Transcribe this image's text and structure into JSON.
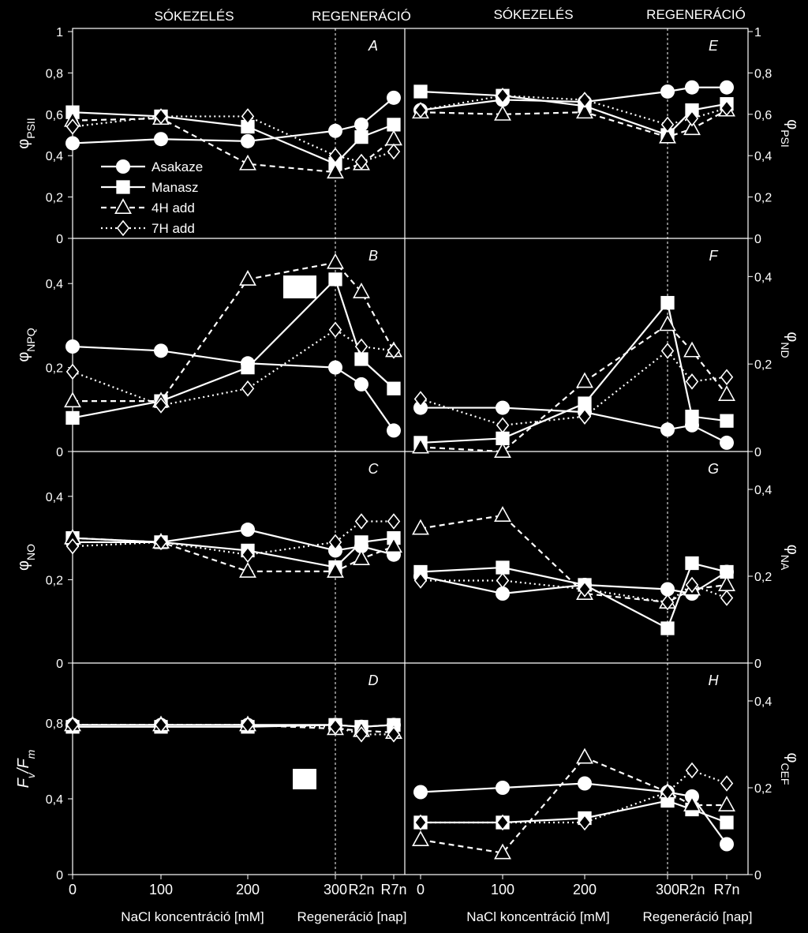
{
  "figure": {
    "header_left": "SÓKEZELÉS",
    "header_right": "REGENERÁCIÓ",
    "x_ticks": [
      "0",
      "100",
      "200",
      "300",
      "R2n",
      "R7n"
    ],
    "xlabel_nacl": "NaCl koncentráció [mM]",
    "xlabel_regen": "Regeneráció [nap]"
  },
  "legend": [
    {
      "name": "Asakaze",
      "style": "solid",
      "marker": "circle"
    },
    {
      "name": "Manasz",
      "style": "solid",
      "marker": "square"
    },
    {
      "name": "4H add",
      "style": "dashed",
      "marker": "triangle"
    },
    {
      "name": "7H add",
      "style": "dotted",
      "marker": "diamond"
    }
  ],
  "chart_data": [
    {
      "type": "line",
      "panel": "A",
      "ylabel": "φPSII",
      "ylabel_main": "φ",
      "ylabel_sub": "PSII",
      "ylim": [
        0,
        1
      ],
      "yticks": [
        "0",
        "0,2",
        "0,4",
        "0,6",
        "0,8",
        "1"
      ],
      "categories": [
        "0",
        "100",
        "200",
        "300",
        "R2n",
        "R7n"
      ],
      "series": [
        {
          "name": "Asakaze",
          "values": [
            0.46,
            0.48,
            0.47,
            0.52,
            0.55,
            0.68
          ]
        },
        {
          "name": "Manasz",
          "values": [
            0.61,
            0.59,
            0.54,
            0.36,
            0.49,
            0.55
          ]
        },
        {
          "name": "4H add",
          "values": [
            0.57,
            0.58,
            0.36,
            0.32,
            0.36,
            0.48
          ]
        },
        {
          "name": "7H add",
          "values": [
            0.54,
            0.59,
            0.59,
            0.4,
            0.37,
            0.42
          ]
        }
      ]
    },
    {
      "type": "line",
      "panel": "B",
      "ylabel": "φNPQ",
      "ylabel_main": "φ",
      "ylabel_sub": "NPQ",
      "ylim": [
        0,
        0.5
      ],
      "yticks": [
        "0",
        "0,2",
        "0,4"
      ],
      "categories": [
        "0",
        "100",
        "200",
        "300",
        "R2n",
        "R7n"
      ],
      "series": [
        {
          "name": "Asakaze",
          "values": [
            0.25,
            0.24,
            0.21,
            0.2,
            0.16,
            0.05
          ]
        },
        {
          "name": "Manasz",
          "values": [
            0.08,
            0.12,
            0.2,
            0.41,
            0.22,
            0.15
          ]
        },
        {
          "name": "4H add",
          "values": [
            0.12,
            0.12,
            0.41,
            0.45,
            0.38,
            0.24
          ]
        },
        {
          "name": "7H add",
          "values": [
            0.19,
            0.11,
            0.15,
            0.29,
            0.25,
            0.24
          ]
        }
      ]
    },
    {
      "type": "line",
      "panel": "C",
      "ylabel": "φNO",
      "ylabel_main": "φ",
      "ylabel_sub": "NO",
      "ylim": [
        0,
        0.5
      ],
      "yticks": [
        "0",
        "0,2",
        "0,4"
      ],
      "categories": [
        "0",
        "100",
        "200",
        "300",
        "R2n",
        "R7n"
      ],
      "series": [
        {
          "name": "Asakaze",
          "values": [
            0.29,
            0.29,
            0.32,
            0.27,
            0.28,
            0.26
          ]
        },
        {
          "name": "Manasz",
          "values": [
            0.3,
            0.29,
            0.27,
            0.23,
            0.29,
            0.3
          ]
        },
        {
          "name": "4H add",
          "values": [
            0.3,
            0.29,
            0.22,
            0.22,
            0.25,
            0.28
          ]
        },
        {
          "name": "7H add",
          "values": [
            0.28,
            0.29,
            0.26,
            0.29,
            0.34,
            0.34
          ]
        }
      ]
    },
    {
      "type": "line",
      "panel": "D",
      "ylabel": "Fv/Fm",
      "ylabel_main": "F",
      "ylabel_sub": "v",
      "ylabel_tail": "/F",
      "ylabel_sub2": "m",
      "ylim": [
        0,
        1.1
      ],
      "yticks": [
        "0",
        "0,4",
        "0,8"
      ],
      "ytick_values": [
        0,
        0.4,
        0.8
      ],
      "categories": [
        "0",
        "100",
        "200",
        "300",
        "R2n",
        "R7n"
      ],
      "series": [
        {
          "name": "Asakaze",
          "values": [
            0.79,
            0.79,
            0.79,
            0.79,
            0.78,
            0.79
          ]
        },
        {
          "name": "Manasz",
          "values": [
            0.78,
            0.78,
            0.78,
            0.79,
            0.78,
            0.79
          ]
        },
        {
          "name": "4H add",
          "values": [
            0.79,
            0.79,
            0.79,
            0.77,
            0.76,
            0.75
          ]
        },
        {
          "name": "7H add",
          "values": [
            0.79,
            0.79,
            0.79,
            0.78,
            0.74,
            0.74
          ]
        }
      ]
    },
    {
      "type": "line",
      "panel": "E",
      "ylabel": "φPSI",
      "ylabel_main": "φ",
      "ylabel_sub": "PSI",
      "ylim": [
        0,
        1
      ],
      "yticks": [
        "0",
        "0,2",
        "0,4",
        "0,6",
        "0,8",
        "1"
      ],
      "categories": [
        "0",
        "100",
        "200",
        "300",
        "R2n",
        "R7n"
      ],
      "series": [
        {
          "name": "Asakaze",
          "values": [
            0.62,
            0.67,
            0.66,
            0.71,
            0.73,
            0.73
          ]
        },
        {
          "name": "Manasz",
          "values": [
            0.71,
            0.69,
            0.64,
            0.5,
            0.62,
            0.65
          ]
        },
        {
          "name": "4H add",
          "values": [
            0.61,
            0.6,
            0.61,
            0.49,
            0.53,
            0.62
          ]
        },
        {
          "name": "7H add",
          "values": [
            0.62,
            0.69,
            0.67,
            0.55,
            0.58,
            0.63
          ]
        }
      ]
    },
    {
      "type": "line",
      "panel": "F",
      "ylabel": "φND",
      "ylabel_main": "φ",
      "ylabel_sub": "ND",
      "ylim": [
        0,
        0.48
      ],
      "yticks": [
        "0",
        "0,2",
        "0,4"
      ],
      "categories": [
        "0",
        "100",
        "200",
        "300",
        "R2n",
        "R7n"
      ],
      "series": [
        {
          "name": "Asakaze",
          "values": [
            0.1,
            0.1,
            0.09,
            0.05,
            0.06,
            0.02
          ]
        },
        {
          "name": "Manasz",
          "values": [
            0.02,
            0.03,
            0.11,
            0.34,
            0.08,
            0.07
          ]
        },
        {
          "name": "4H add",
          "values": [
            0.01,
            0.0,
            0.16,
            0.29,
            0.23,
            0.13
          ]
        },
        {
          "name": "7H add",
          "values": [
            0.12,
            0.06,
            0.08,
            0.23,
            0.16,
            0.17
          ]
        }
      ]
    },
    {
      "type": "line",
      "panel": "G",
      "ylabel": "φNA",
      "ylabel_main": "φ",
      "ylabel_sub": "NA",
      "ylim": [
        0,
        0.48
      ],
      "yticks": [
        "0",
        "0,2",
        "0,4"
      ],
      "categories": [
        "0",
        "100",
        "200",
        "300",
        "R2n",
        "R7n"
      ],
      "series": [
        {
          "name": "Asakaze",
          "values": [
            0.2,
            0.16,
            0.18,
            0.17,
            0.16,
            0.21
          ]
        },
        {
          "name": "Manasz",
          "values": [
            0.21,
            0.22,
            0.18,
            0.08,
            0.23,
            0.21
          ]
        },
        {
          "name": "4H add",
          "values": [
            0.31,
            0.34,
            0.16,
            0.14,
            0.17,
            0.18
          ]
        },
        {
          "name": "7H add",
          "values": [
            0.19,
            0.19,
            0.17,
            0.14,
            0.18,
            0.15
          ]
        }
      ]
    },
    {
      "type": "line",
      "panel": "H",
      "ylabel": "φCEF",
      "ylabel_main": "φ",
      "ylabel_sub": "CEF",
      "ylim": [
        0,
        0.48
      ],
      "yticks": [
        "0",
        "0,2",
        "0,4"
      ],
      "categories": [
        "0",
        "100",
        "200",
        "300",
        "R2n",
        "R7n"
      ],
      "series": [
        {
          "name": "Asakaze",
          "values": [
            0.19,
            0.2,
            0.21,
            0.19,
            0.18,
            0.07
          ]
        },
        {
          "name": "Manasz",
          "values": [
            0.12,
            0.12,
            0.13,
            0.17,
            0.15,
            0.12
          ]
        },
        {
          "name": "4H add",
          "values": [
            0.08,
            0.05,
            0.27,
            0.19,
            0.16,
            0.16
          ]
        },
        {
          "name": "7H add",
          "values": [
            0.12,
            0.12,
            0.12,
            0.19,
            0.24,
            0.21
          ]
        }
      ]
    }
  ]
}
